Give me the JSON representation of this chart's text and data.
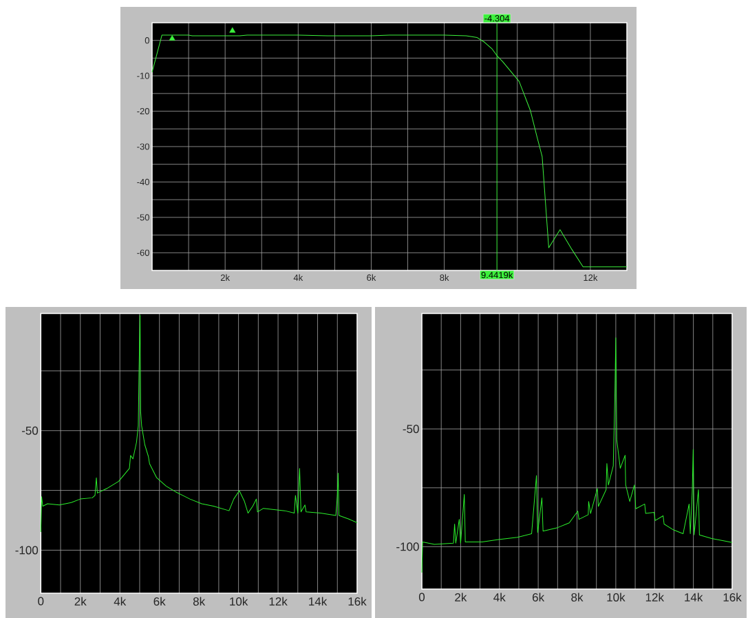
{
  "chart_data": [
    {
      "type": "line",
      "xlim": [
        0,
        13000
      ],
      "ylim": [
        -65,
        5
      ],
      "xticks": [
        {
          "value": 1000,
          "label": null
        },
        {
          "value": 2000,
          "label": "2k"
        },
        {
          "value": 3000,
          "label": null
        },
        {
          "value": 4000,
          "label": "4k"
        },
        {
          "value": 5000,
          "label": null
        },
        {
          "value": 6000,
          "label": "6k"
        },
        {
          "value": 7000,
          "label": null
        },
        {
          "value": 8000,
          "label": "8k"
        },
        {
          "value": 9000,
          "label": null
        },
        {
          "value": 10000,
          "label": null
        },
        {
          "value": 11000,
          "label": null
        },
        {
          "value": 12000,
          "label": "12k"
        }
      ],
      "yticks": [
        {
          "value": -60,
          "label": "-60"
        },
        {
          "value": -55,
          "label": null
        },
        {
          "value": -50,
          "label": "-50"
        },
        {
          "value": -45,
          "label": null
        },
        {
          "value": -40,
          "label": "-40"
        },
        {
          "value": -35,
          "label": null
        },
        {
          "value": -30,
          "label": "-30"
        },
        {
          "value": -25,
          "label": null
        },
        {
          "value": -20,
          "label": "-20"
        },
        {
          "value": -15,
          "label": null
        },
        {
          "value": -10,
          "label": "-10"
        },
        {
          "value": -5,
          "label": null
        },
        {
          "value": 0,
          "label": "0"
        }
      ],
      "grid": true,
      "series": [
        {
          "color": "#3cf03c",
          "x": [
            0,
            270,
            600,
            1000,
            1100,
            2000,
            2400,
            2600,
            4000,
            4800,
            6000,
            6500,
            8000,
            8600,
            8900,
            9100,
            9300,
            9441.9,
            9600,
            9800,
            10050,
            10360,
            10540,
            10680,
            10770,
            10860,
            11170,
            11490,
            11800,
            13000
          ],
          "values": [
            -9,
            1.5,
            1.5,
            1.5,
            1.3,
            1.3,
            1.3,
            1.5,
            1.5,
            1.3,
            1.3,
            1.5,
            1.5,
            1.3,
            0.8,
            -0.5,
            -2.3,
            -4.3,
            -6,
            -8.5,
            -11.6,
            -19.9,
            -27.3,
            -32.8,
            -45.7,
            -58.6,
            -53.5,
            -59,
            -64,
            -64
          ]
        },
        {
          "type": "scatter",
          "marker": "triangle",
          "color": "#3cf03c",
          "x": [
            550,
            2200
          ],
          "values": [
            0.5,
            2.7
          ]
        }
      ],
      "ref_lines": [
        {
          "axis": "x",
          "value": 9441.9,
          "label": "9.4419k",
          "color": "#3cf03c"
        }
      ],
      "annotations": [
        "-4.304"
      ]
    },
    {
      "type": "line",
      "xlim": [
        0,
        16000
      ],
      "ylim": [
        -118,
        -1
      ],
      "xticks": [
        0,
        {
          "value": 1000,
          "label": null
        },
        {
          "value": 2000,
          "label": "2k"
        },
        {
          "value": 3000,
          "label": null
        },
        {
          "value": 4000,
          "label": "4k"
        },
        {
          "value": 5000,
          "label": null
        },
        {
          "value": 6000,
          "label": "6k"
        },
        {
          "value": 7000,
          "label": null
        },
        {
          "value": 8000,
          "label": "8k"
        },
        {
          "value": 9000,
          "label": null
        },
        {
          "value": 10000,
          "label": "10k"
        },
        {
          "value": 11000,
          "label": null
        },
        {
          "value": 12000,
          "label": "12k"
        },
        {
          "value": 13000,
          "label": null
        },
        {
          "value": 14000,
          "label": "14k"
        },
        {
          "value": 15000,
          "label": null
        },
        {
          "value": 16000,
          "label": "16k"
        }
      ],
      "yticks": [
        {
          "value": -100,
          "label": "-100"
        },
        {
          "value": -75,
          "label": null
        },
        {
          "value": -50,
          "label": "-50"
        },
        {
          "value": -25,
          "label": null
        }
      ],
      "grid": true,
      "series": [
        {
          "color": "#2bef2b",
          "x": [
            0,
            40,
            100,
            340,
            940,
            1540,
            2000,
            2600,
            2740,
            2810,
            2860,
            3340,
            3940,
            4480,
            4540,
            4660,
            4840,
            4930,
            4970,
            5020,
            5050,
            5100,
            5260,
            5440,
            5500,
            5860,
            6340,
            6820,
            7180,
            7540,
            8140,
            8740,
            9520,
            9760,
            10040,
            10300,
            10480,
            10720,
            10900,
            10960,
            11260,
            12340,
            12820,
            12880,
            13000,
            13090,
            13160,
            13360,
            13420,
            14140,
            14920,
            15000,
            15040,
            15080,
            15580,
            16000
          ],
          "values": [
            -92.4,
            -77.6,
            -81.6,
            -80.6,
            -81.1,
            -80.1,
            -78.6,
            -78.1,
            -77.1,
            -69.7,
            -76.1,
            -74.2,
            -71.2,
            -65.8,
            -60.4,
            -61.8,
            -54.9,
            -48,
            -24.4,
            -1.7,
            -42.1,
            -48,
            -55.9,
            -60.8,
            -63.8,
            -69.7,
            -73.2,
            -75.6,
            -77.1,
            -78.6,
            -80.6,
            -81.6,
            -83.5,
            -78.6,
            -75.1,
            -79.6,
            -84.5,
            -81.6,
            -78.6,
            -84,
            -82.5,
            -83.5,
            -84.5,
            -77.1,
            -84.5,
            -65.8,
            -84,
            -81.1,
            -84,
            -84.5,
            -85.5,
            -77.1,
            -67.8,
            -85.5,
            -87,
            -88.5
          ]
        }
      ]
    },
    {
      "type": "line",
      "xlim": [
        0,
        16000
      ],
      "ylim": [
        -118,
        -1
      ],
      "xticks": [
        0,
        {
          "value": 1000,
          "label": null
        },
        {
          "value": 2000,
          "label": "2k"
        },
        {
          "value": 3000,
          "label": null
        },
        {
          "value": 4000,
          "label": "4k"
        },
        {
          "value": 5000,
          "label": null
        },
        {
          "value": 6000,
          "label": "6k"
        },
        {
          "value": 7000,
          "label": null
        },
        {
          "value": 8000,
          "label": "8k"
        },
        {
          "value": 9000,
          "label": null
        },
        {
          "value": 10000,
          "label": "10k"
        },
        {
          "value": 11000,
          "label": null
        },
        {
          "value": 12000,
          "label": "12k"
        },
        {
          "value": 13000,
          "label": null
        },
        {
          "value": 14000,
          "label": "14k"
        },
        {
          "value": 15000,
          "label": null
        },
        {
          "value": 16000,
          "label": "16k"
        }
      ],
      "yticks": [
        {
          "value": -100,
          "label": "-100"
        },
        {
          "value": -75,
          "label": null
        },
        {
          "value": -50,
          "label": "-50"
        },
        {
          "value": -25,
          "label": null
        }
      ],
      "grid": true,
      "series": [
        {
          "color": "#2bef2b",
          "x": [
            0,
            40,
            650,
            1630,
            1690,
            1750,
            1930,
            2000,
            2190,
            2240,
            3100,
            3950,
            4930,
            5660,
            5910,
            5970,
            6190,
            6250,
            7000,
            7600,
            8040,
            8100,
            8580,
            8600,
            8700,
            9050,
            9100,
            9500,
            9540,
            9620,
            9870,
            9950,
            10000,
            10050,
            10230,
            10480,
            10510,
            10720,
            10960,
            11030,
            11490,
            11540,
            11980,
            12030,
            12440,
            12490,
            12980,
            13470,
            13780,
            13840,
            13940,
            13990,
            14040,
            14260,
            14310,
            14940,
            15550,
            16000
          ],
          "values": [
            -111,
            -98,
            -99,
            -98.5,
            -90.4,
            -98.5,
            -88.4,
            -98.5,
            -77.8,
            -98,
            -98,
            -97,
            -96,
            -94.5,
            -69.8,
            -94,
            -79.3,
            -93.4,
            -91.9,
            -89.9,
            -84.9,
            -88.4,
            -86.4,
            -80.8,
            -85.9,
            -75.3,
            -82.9,
            -75.8,
            -64.7,
            -73.8,
            -65.7,
            -36.5,
            -11.3,
            -54.6,
            -66.7,
            -61.2,
            -73.8,
            -80.8,
            -73.8,
            -83.9,
            -81.9,
            -85.9,
            -85.4,
            -88.9,
            -86.9,
            -90.4,
            -92.9,
            -94.5,
            -81.9,
            -94.5,
            -76.8,
            -58.7,
            -95,
            -75.8,
            -95,
            -96.5,
            -97.5,
            -98.2
          ]
        }
      ]
    }
  ]
}
